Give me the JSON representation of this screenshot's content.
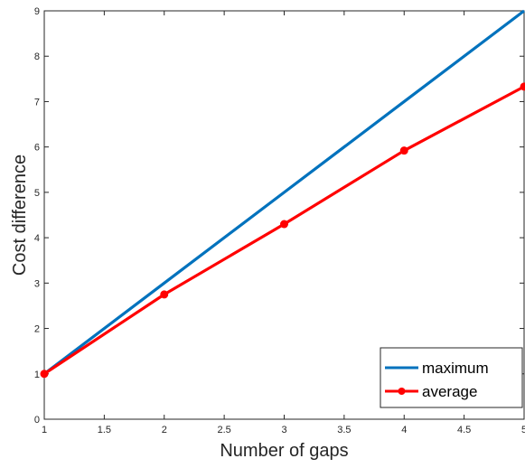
{
  "chart_data": {
    "type": "line",
    "title": "",
    "xlabel": "Number of gaps",
    "ylabel": "Cost difference",
    "xlim": [
      1,
      5
    ],
    "ylim": [
      0,
      9
    ],
    "x_ticks": [
      1,
      1.5,
      2,
      2.5,
      3,
      3.5,
      4,
      4.5,
      5
    ],
    "x_tick_labels": [
      "1",
      "1.5",
      "2",
      "2.5",
      "3",
      "3.5",
      "4",
      "4.5",
      "5"
    ],
    "y_ticks": [
      0,
      1,
      2,
      3,
      4,
      5,
      6,
      7,
      8,
      9
    ],
    "y_tick_labels": [
      "0",
      "1",
      "2",
      "3",
      "4",
      "5",
      "6",
      "7",
      "8",
      "9"
    ],
    "grid": false,
    "legend_position": "bottom-right",
    "x": [
      1,
      2,
      3,
      4,
      5
    ],
    "series": [
      {
        "name": "maximum",
        "color": "#0072BD",
        "marker": "none",
        "values": [
          1,
          3,
          5,
          7,
          9
        ]
      },
      {
        "name": "average",
        "color": "#FF0000",
        "marker": "circle",
        "values": [
          1,
          2.75,
          4.3,
          5.92,
          7.33
        ]
      }
    ]
  }
}
